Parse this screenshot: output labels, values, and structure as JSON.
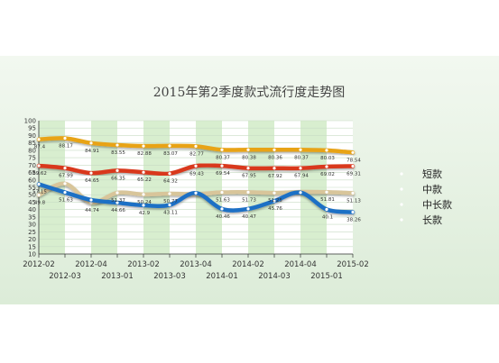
{
  "colors": {
    "page_bg": "#ffffff",
    "panel_bg": "#e6f1e4",
    "plot_bg": "#ffffff",
    "band_color": "#cbe8bf",
    "grid": "#c8dcc4",
    "axis": "#333333"
  },
  "chart_data": {
    "type": "line",
    "title": "2015年第2季度款式流行度走势图",
    "x": [
      "2012-02",
      "2012-03",
      "2012-04",
      "2013-01",
      "2013-02",
      "2013-03",
      "2013-04",
      "2014-01",
      "2014-02",
      "2014-03",
      "2014-04",
      "2015-01",
      "2015-02"
    ],
    "x_labels_upper": [
      "2012-02",
      "2012-04",
      "2013-02",
      "2013-04",
      "2014-02",
      "2014-04",
      "2015-02"
    ],
    "x_labels_lower": [
      "2012-03",
      "2013-01",
      "2013-03",
      "2014-01",
      "2014-03",
      "2015-01"
    ],
    "ylim": [
      10,
      100
    ],
    "yticks": [
      10,
      15,
      20,
      25,
      30,
      35,
      40,
      45,
      50,
      55,
      60,
      65,
      70,
      75,
      80,
      85,
      90,
      95,
      100
    ],
    "grid": true,
    "legend_position": "right",
    "series": [
      {
        "name": "短款",
        "color": "#e8a317",
        "values": [
          87.4,
          88.17,
          84.91,
          83.55,
          82.88,
          83.07,
          82.77,
          80.37,
          80.38,
          80.36,
          80.37,
          80.03,
          78.54
        ],
        "labels": [
          "87.4",
          "88.17",
          "84.91",
          "83.55",
          "82.88",
          "83.07",
          "82.77",
          "80.37",
          "80.38",
          "80.36",
          "80.37",
          "80.03",
          "78.54"
        ]
      },
      {
        "name": "中款",
        "color": "#d9381e",
        "values": [
          69.62,
          67.99,
          64.65,
          66.35,
          65.22,
          64.32,
          69.43,
          69.54,
          67.95,
          67.92,
          67.94,
          69.02,
          69.31
        ],
        "labels": [
          "69.62",
          "67.99",
          "64.65",
          "66.35",
          "65.22",
          "64.32",
          "69.43",
          "69.54",
          "67.95",
          "67.92",
          "67.94",
          "69.02",
          "69.31"
        ]
      },
      {
        "name": "中长款",
        "color": "#d8c59a",
        "values": [
          49.8,
          57.55,
          44.74,
          51.37,
          50.24,
          50.77,
          50.5,
          51.63,
          51.73,
          51.25,
          51.95,
          51.81,
          51.13
        ],
        "labels": [
          "49.8",
          "",
          "44.74",
          "51.37",
          "50.24",
          "50.77",
          "",
          "51.63",
          "51.73",
          "51.25",
          "",
          "51.81",
          "51.13"
        ]
      },
      {
        "name": "长款",
        "color": "#1f6fc5",
        "values": [
          57.15,
          51.63,
          46.5,
          44.66,
          42.9,
          43.11,
          51.2,
          40.46,
          40.47,
          45.76,
          51.5,
          40.1,
          38.26
        ],
        "labels": [
          "57.15",
          "51.63",
          "",
          "44.66",
          "42.9",
          "43.11",
          "",
          "40.46",
          "40.47",
          "45.76",
          "",
          "40.1",
          "38.26"
        ]
      }
    ]
  }
}
